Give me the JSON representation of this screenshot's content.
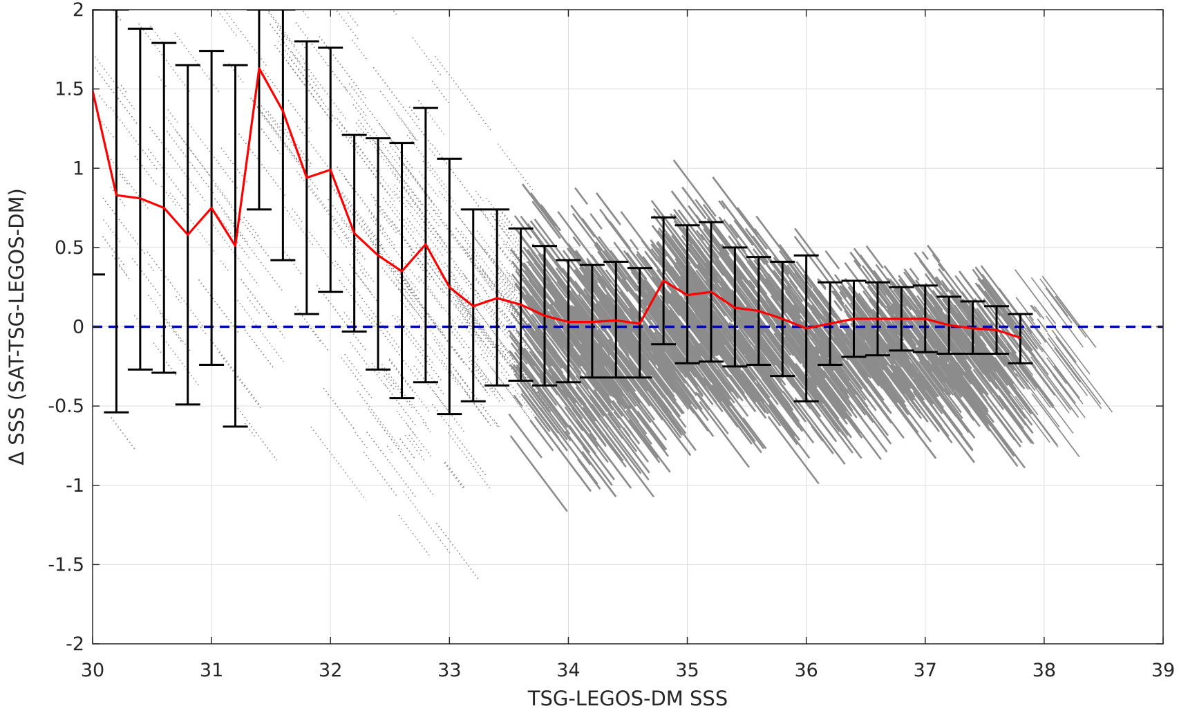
{
  "chart_data": {
    "type": "scatter",
    "xlabel": "TSG-LEGOS-DM SSS",
    "ylabel": "Δ SSS (SAT-TSG-LEGOS-DM)",
    "xlim": [
      30,
      39
    ],
    "ylim": [
      -2,
      2
    ],
    "x_ticks": [
      "30",
      "31",
      "32",
      "33",
      "34",
      "35",
      "36",
      "37",
      "38",
      "39"
    ],
    "y_ticks": [
      "-2",
      "-1.5",
      "-1",
      "-0.5",
      "0",
      "0.5",
      "1",
      "1.5",
      "2"
    ],
    "grid": true,
    "colors": {
      "scatter": "#8c8c8c",
      "mean_line": "#ff0000",
      "error_bars": "#000000",
      "zero_line": "#0000cc",
      "axis": "#262626",
      "grid": "#dcdcdc"
    },
    "zero_reference": {
      "y": 0,
      "style": "dashed"
    },
    "series": [
      {
        "type": "line-errorbar",
        "points": [
          {
            "x": 30.0,
            "y": 1.49,
            "lo": 0.33,
            "hi": 2.0
          },
          {
            "x": 30.2,
            "y": 0.83,
            "lo": -0.54,
            "hi": 2.0
          },
          {
            "x": 30.4,
            "y": 0.81,
            "lo": -0.27,
            "hi": 1.88
          },
          {
            "x": 30.6,
            "y": 0.75,
            "lo": -0.29,
            "hi": 1.79
          },
          {
            "x": 30.8,
            "y": 0.58,
            "lo": -0.49,
            "hi": 1.65
          },
          {
            "x": 31.0,
            "y": 0.75,
            "lo": -0.24,
            "hi": 1.74
          },
          {
            "x": 31.2,
            "y": 0.51,
            "lo": -0.63,
            "hi": 1.65
          },
          {
            "x": 31.4,
            "y": 1.63,
            "lo": 0.74,
            "hi": 2.0
          },
          {
            "x": 31.6,
            "y": 1.36,
            "lo": 0.42,
            "hi": 2.0
          },
          {
            "x": 31.8,
            "y": 0.94,
            "lo": 0.08,
            "hi": 1.8
          },
          {
            "x": 32.0,
            "y": 0.99,
            "lo": 0.22,
            "hi": 1.76
          },
          {
            "x": 32.2,
            "y": 0.59,
            "lo": -0.03,
            "hi": 1.21
          },
          {
            "x": 32.4,
            "y": 0.45,
            "lo": -0.27,
            "hi": 1.19
          },
          {
            "x": 32.6,
            "y": 0.35,
            "lo": -0.45,
            "hi": 1.16
          },
          {
            "x": 32.8,
            "y": 0.52,
            "lo": -0.35,
            "hi": 1.38
          },
          {
            "x": 33.0,
            "y": 0.25,
            "lo": -0.55,
            "hi": 1.06
          },
          {
            "x": 33.2,
            "y": 0.13,
            "lo": -0.47,
            "hi": 0.74
          },
          {
            "x": 33.4,
            "y": 0.18,
            "lo": -0.37,
            "hi": 0.74
          },
          {
            "x": 33.6,
            "y": 0.14,
            "lo": -0.34,
            "hi": 0.62
          },
          {
            "x": 33.8,
            "y": 0.07,
            "lo": -0.37,
            "hi": 0.51
          },
          {
            "x": 34.0,
            "y": 0.03,
            "lo": -0.35,
            "hi": 0.42
          },
          {
            "x": 34.2,
            "y": 0.03,
            "lo": -0.32,
            "hi": 0.39
          },
          {
            "x": 34.4,
            "y": 0.04,
            "lo": -0.32,
            "hi": 0.41
          },
          {
            "x": 34.6,
            "y": 0.02,
            "lo": -0.32,
            "hi": 0.37
          },
          {
            "x": 34.8,
            "y": 0.29,
            "lo": -0.11,
            "hi": 0.69
          },
          {
            "x": 35.0,
            "y": 0.2,
            "lo": -0.23,
            "hi": 0.64
          },
          {
            "x": 35.2,
            "y": 0.22,
            "lo": -0.22,
            "hi": 0.66
          },
          {
            "x": 35.4,
            "y": 0.12,
            "lo": -0.25,
            "hi": 0.5
          },
          {
            "x": 35.6,
            "y": 0.1,
            "lo": -0.24,
            "hi": 0.44
          },
          {
            "x": 35.8,
            "y": 0.05,
            "lo": -0.31,
            "hi": 0.41
          },
          {
            "x": 36.0,
            "y": -0.01,
            "lo": -0.47,
            "hi": 0.45
          },
          {
            "x": 36.2,
            "y": 0.02,
            "lo": -0.24,
            "hi": 0.28
          },
          {
            "x": 36.4,
            "y": 0.05,
            "lo": -0.19,
            "hi": 0.29
          },
          {
            "x": 36.6,
            "y": 0.05,
            "lo": -0.18,
            "hi": 0.28
          },
          {
            "x": 36.8,
            "y": 0.05,
            "lo": -0.15,
            "hi": 0.25
          },
          {
            "x": 37.0,
            "y": 0.05,
            "lo": -0.16,
            "hi": 0.26
          },
          {
            "x": 37.2,
            "y": 0.01,
            "lo": -0.17,
            "hi": 0.19
          },
          {
            "x": 37.4,
            "y": -0.01,
            "lo": -0.17,
            "hi": 0.16
          },
          {
            "x": 37.6,
            "y": -0.02,
            "lo": -0.17,
            "hi": 0.13
          },
          {
            "x": 37.8,
            "y": -0.07,
            "lo": -0.23,
            "hi": 0.08
          }
        ]
      }
    ]
  }
}
